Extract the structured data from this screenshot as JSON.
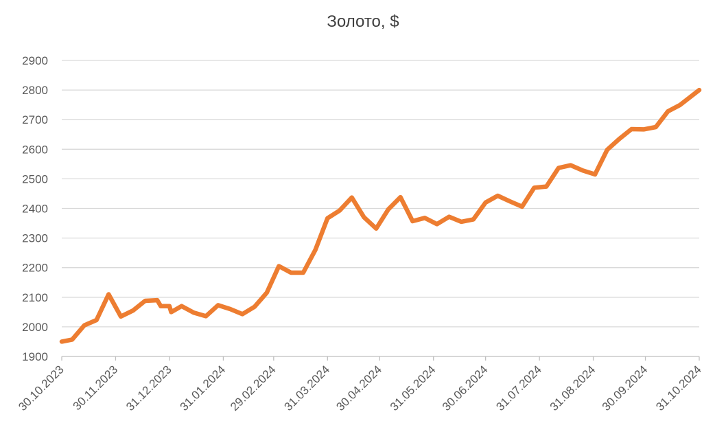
{
  "chart_data": {
    "type": "line",
    "title": "Золото, $",
    "xlabel": "",
    "ylabel": "",
    "ylim": [
      1900,
      2900
    ],
    "yticks": [
      1900,
      2000,
      2100,
      2200,
      2300,
      2400,
      2500,
      2600,
      2700,
      2800,
      2900
    ],
    "xlim": [
      "2023-10-30",
      "2024-10-31"
    ],
    "xticks": [
      {
        "date": "2023-10-30",
        "label": "30.10.2023"
      },
      {
        "date": "2023-11-30",
        "label": "30.11.2023"
      },
      {
        "date": "2023-12-31",
        "label": "31.12.2023"
      },
      {
        "date": "2024-01-31",
        "label": "31.01.2024"
      },
      {
        "date": "2024-02-29",
        "label": "29.02.2024"
      },
      {
        "date": "2024-03-31",
        "label": "31.03.2024"
      },
      {
        "date": "2024-04-30",
        "label": "30.04.2024"
      },
      {
        "date": "2024-05-31",
        "label": "31.05.2024"
      },
      {
        "date": "2024-06-30",
        "label": "30.06.2024"
      },
      {
        "date": "2024-07-31",
        "label": "31.07.2024"
      },
      {
        "date": "2024-08-31",
        "label": "31.08.2024"
      },
      {
        "date": "2024-09-30",
        "label": "30.09.2024"
      },
      {
        "date": "2024-10-31",
        "label": "31.10.2024"
      }
    ],
    "grid": true,
    "series": [
      {
        "color": "#ED7D31",
        "points": [
          [
            "2023-10-30",
            1950
          ],
          [
            "2023-11-05",
            1957
          ],
          [
            "2023-11-12",
            2005
          ],
          [
            "2023-11-19",
            2023
          ],
          [
            "2023-11-26",
            2110
          ],
          [
            "2023-12-03",
            2035
          ],
          [
            "2023-12-10",
            2055
          ],
          [
            "2023-12-17",
            2088
          ],
          [
            "2023-12-24",
            2090
          ],
          [
            "2023-12-26",
            2070
          ],
          [
            "2023-12-31",
            2070
          ],
          [
            "2024-01-01",
            2050
          ],
          [
            "2024-01-07",
            2070
          ],
          [
            "2024-01-14",
            2048
          ],
          [
            "2024-01-21",
            2036
          ],
          [
            "2024-01-28",
            2073
          ],
          [
            "2024-02-04",
            2060
          ],
          [
            "2024-02-11",
            2043
          ],
          [
            "2024-02-18",
            2068
          ],
          [
            "2024-02-25",
            2115
          ],
          [
            "2024-03-03",
            2205
          ],
          [
            "2024-03-10",
            2183
          ],
          [
            "2024-03-17",
            2183
          ],
          [
            "2024-03-24",
            2260
          ],
          [
            "2024-03-31",
            2367
          ],
          [
            "2024-04-07",
            2393
          ],
          [
            "2024-04-14",
            2437
          ],
          [
            "2024-04-21",
            2370
          ],
          [
            "2024-04-28",
            2332
          ],
          [
            "2024-05-05",
            2397
          ],
          [
            "2024-05-12",
            2438
          ],
          [
            "2024-05-19",
            2357
          ],
          [
            "2024-05-26",
            2368
          ],
          [
            "2024-06-02",
            2347
          ],
          [
            "2024-06-09",
            2372
          ],
          [
            "2024-06-16",
            2355
          ],
          [
            "2024-06-23",
            2363
          ],
          [
            "2024-06-30",
            2420
          ],
          [
            "2024-07-07",
            2443
          ],
          [
            "2024-07-14",
            2424
          ],
          [
            "2024-07-21",
            2406
          ],
          [
            "2024-07-28",
            2470
          ],
          [
            "2024-08-04",
            2474
          ],
          [
            "2024-08-11",
            2537
          ],
          [
            "2024-08-18",
            2546
          ],
          [
            "2024-08-25",
            2528
          ],
          [
            "2024-09-01",
            2515
          ],
          [
            "2024-09-08",
            2598
          ],
          [
            "2024-09-15",
            2635
          ],
          [
            "2024-09-22",
            2668
          ],
          [
            "2024-09-29",
            2667
          ],
          [
            "2024-10-06",
            2675
          ],
          [
            "2024-10-13",
            2728
          ],
          [
            "2024-10-20",
            2750
          ],
          [
            "2024-10-31",
            2800
          ]
        ]
      }
    ]
  }
}
